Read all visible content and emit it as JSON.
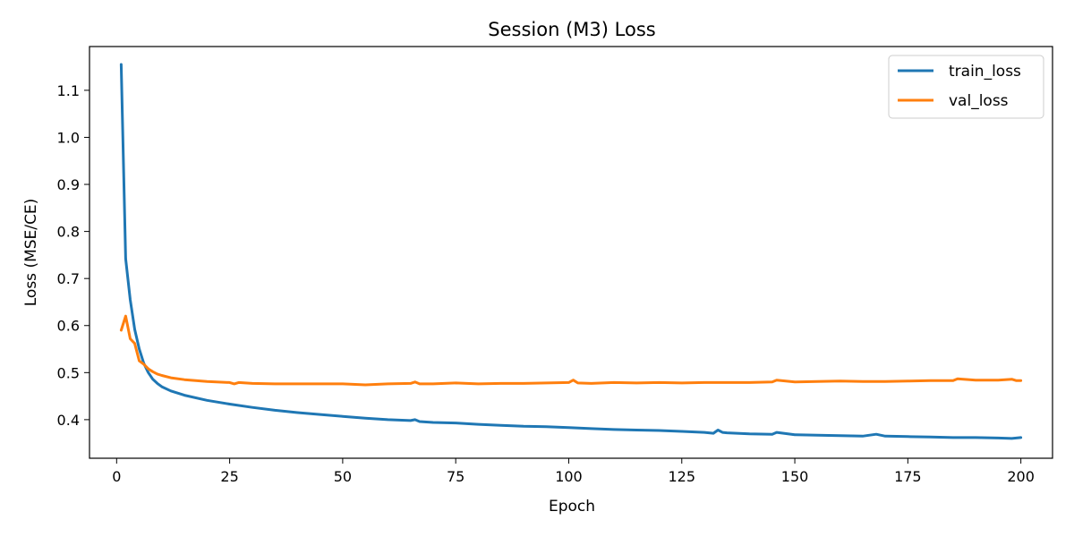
{
  "chart_data": {
    "type": "line",
    "title": "Session (M3) Loss",
    "xlabel": "Epoch",
    "ylabel": "Loss (MSE/CE)",
    "xlim": [
      -6,
      207
    ],
    "ylim": [
      0.318,
      1.193
    ],
    "xticks": [
      0,
      25,
      50,
      75,
      100,
      125,
      150,
      175,
      200
    ],
    "yticks": [
      0.4,
      0.5,
      0.6,
      0.7,
      0.8,
      0.9,
      1.0,
      1.1
    ],
    "ytick_labels": [
      "0.4",
      "0.5",
      "0.6",
      "0.7",
      "0.8",
      "0.9",
      "1.0",
      "1.1"
    ],
    "grid": false,
    "legend_position": "top-right",
    "series": [
      {
        "name": "train_loss",
        "color": "#1f77b4",
        "points": [
          [
            1,
            1.155
          ],
          [
            2,
            0.742
          ],
          [
            3,
            0.655
          ],
          [
            4,
            0.592
          ],
          [
            5,
            0.55
          ],
          [
            6,
            0.52
          ],
          [
            7,
            0.5
          ],
          [
            8,
            0.486
          ],
          [
            9,
            0.477
          ],
          [
            10,
            0.47
          ],
          [
            12,
            0.461
          ],
          [
            15,
            0.452
          ],
          [
            20,
            0.441
          ],
          [
            25,
            0.433
          ],
          [
            30,
            0.426
          ],
          [
            35,
            0.42
          ],
          [
            40,
            0.415
          ],
          [
            45,
            0.411
          ],
          [
            50,
            0.407
          ],
          [
            55,
            0.403
          ],
          [
            60,
            0.4
          ],
          [
            65,
            0.398
          ],
          [
            66,
            0.4
          ],
          [
            67,
            0.396
          ],
          [
            70,
            0.394
          ],
          [
            75,
            0.393
          ],
          [
            80,
            0.39
          ],
          [
            85,
            0.388
          ],
          [
            90,
            0.386
          ],
          [
            95,
            0.385
          ],
          [
            100,
            0.383
          ],
          [
            105,
            0.381
          ],
          [
            110,
            0.379
          ],
          [
            115,
            0.378
          ],
          [
            120,
            0.377
          ],
          [
            125,
            0.375
          ],
          [
            130,
            0.373
          ],
          [
            131,
            0.372
          ],
          [
            132,
            0.371
          ],
          [
            133,
            0.378
          ],
          [
            134,
            0.373
          ],
          [
            135,
            0.372
          ],
          [
            140,
            0.37
          ],
          [
            145,
            0.369
          ],
          [
            146,
            0.373
          ],
          [
            150,
            0.368
          ],
          [
            155,
            0.367
          ],
          [
            160,
            0.366
          ],
          [
            165,
            0.365
          ],
          [
            168,
            0.369
          ],
          [
            170,
            0.365
          ],
          [
            175,
            0.364
          ],
          [
            180,
            0.363
          ],
          [
            185,
            0.362
          ],
          [
            190,
            0.362
          ],
          [
            195,
            0.361
          ],
          [
            198,
            0.36
          ],
          [
            200,
            0.362
          ]
        ]
      },
      {
        "name": "val_loss",
        "color": "#ff7f0e",
        "points": [
          [
            1,
            0.59
          ],
          [
            2,
            0.62
          ],
          [
            3,
            0.572
          ],
          [
            4,
            0.562
          ],
          [
            5,
            0.525
          ],
          [
            6,
            0.518
          ],
          [
            7,
            0.508
          ],
          [
            8,
            0.502
          ],
          [
            9,
            0.497
          ],
          [
            10,
            0.494
          ],
          [
            12,
            0.489
          ],
          [
            15,
            0.485
          ],
          [
            20,
            0.481
          ],
          [
            25,
            0.479
          ],
          [
            26,
            0.476
          ],
          [
            27,
            0.479
          ],
          [
            30,
            0.477
          ],
          [
            35,
            0.476
          ],
          [
            40,
            0.476
          ],
          [
            45,
            0.476
          ],
          [
            50,
            0.476
          ],
          [
            55,
            0.474
          ],
          [
            60,
            0.476
          ],
          [
            65,
            0.477
          ],
          [
            66,
            0.48
          ],
          [
            67,
            0.476
          ],
          [
            70,
            0.476
          ],
          [
            75,
            0.478
          ],
          [
            80,
            0.476
          ],
          [
            85,
            0.477
          ],
          [
            90,
            0.477
          ],
          [
            95,
            0.478
          ],
          [
            100,
            0.479
          ],
          [
            101,
            0.484
          ],
          [
            102,
            0.478
          ],
          [
            105,
            0.477
          ],
          [
            110,
            0.479
          ],
          [
            115,
            0.478
          ],
          [
            120,
            0.479
          ],
          [
            125,
            0.478
          ],
          [
            130,
            0.479
          ],
          [
            135,
            0.479
          ],
          [
            140,
            0.479
          ],
          [
            145,
            0.48
          ],
          [
            146,
            0.484
          ],
          [
            150,
            0.48
          ],
          [
            155,
            0.481
          ],
          [
            160,
            0.482
          ],
          [
            165,
            0.481
          ],
          [
            170,
            0.481
          ],
          [
            175,
            0.482
          ],
          [
            180,
            0.483
          ],
          [
            185,
            0.483
          ],
          [
            186,
            0.487
          ],
          [
            190,
            0.484
          ],
          [
            195,
            0.484
          ],
          [
            198,
            0.486
          ],
          [
            199,
            0.483
          ],
          [
            200,
            0.483
          ]
        ]
      }
    ]
  }
}
